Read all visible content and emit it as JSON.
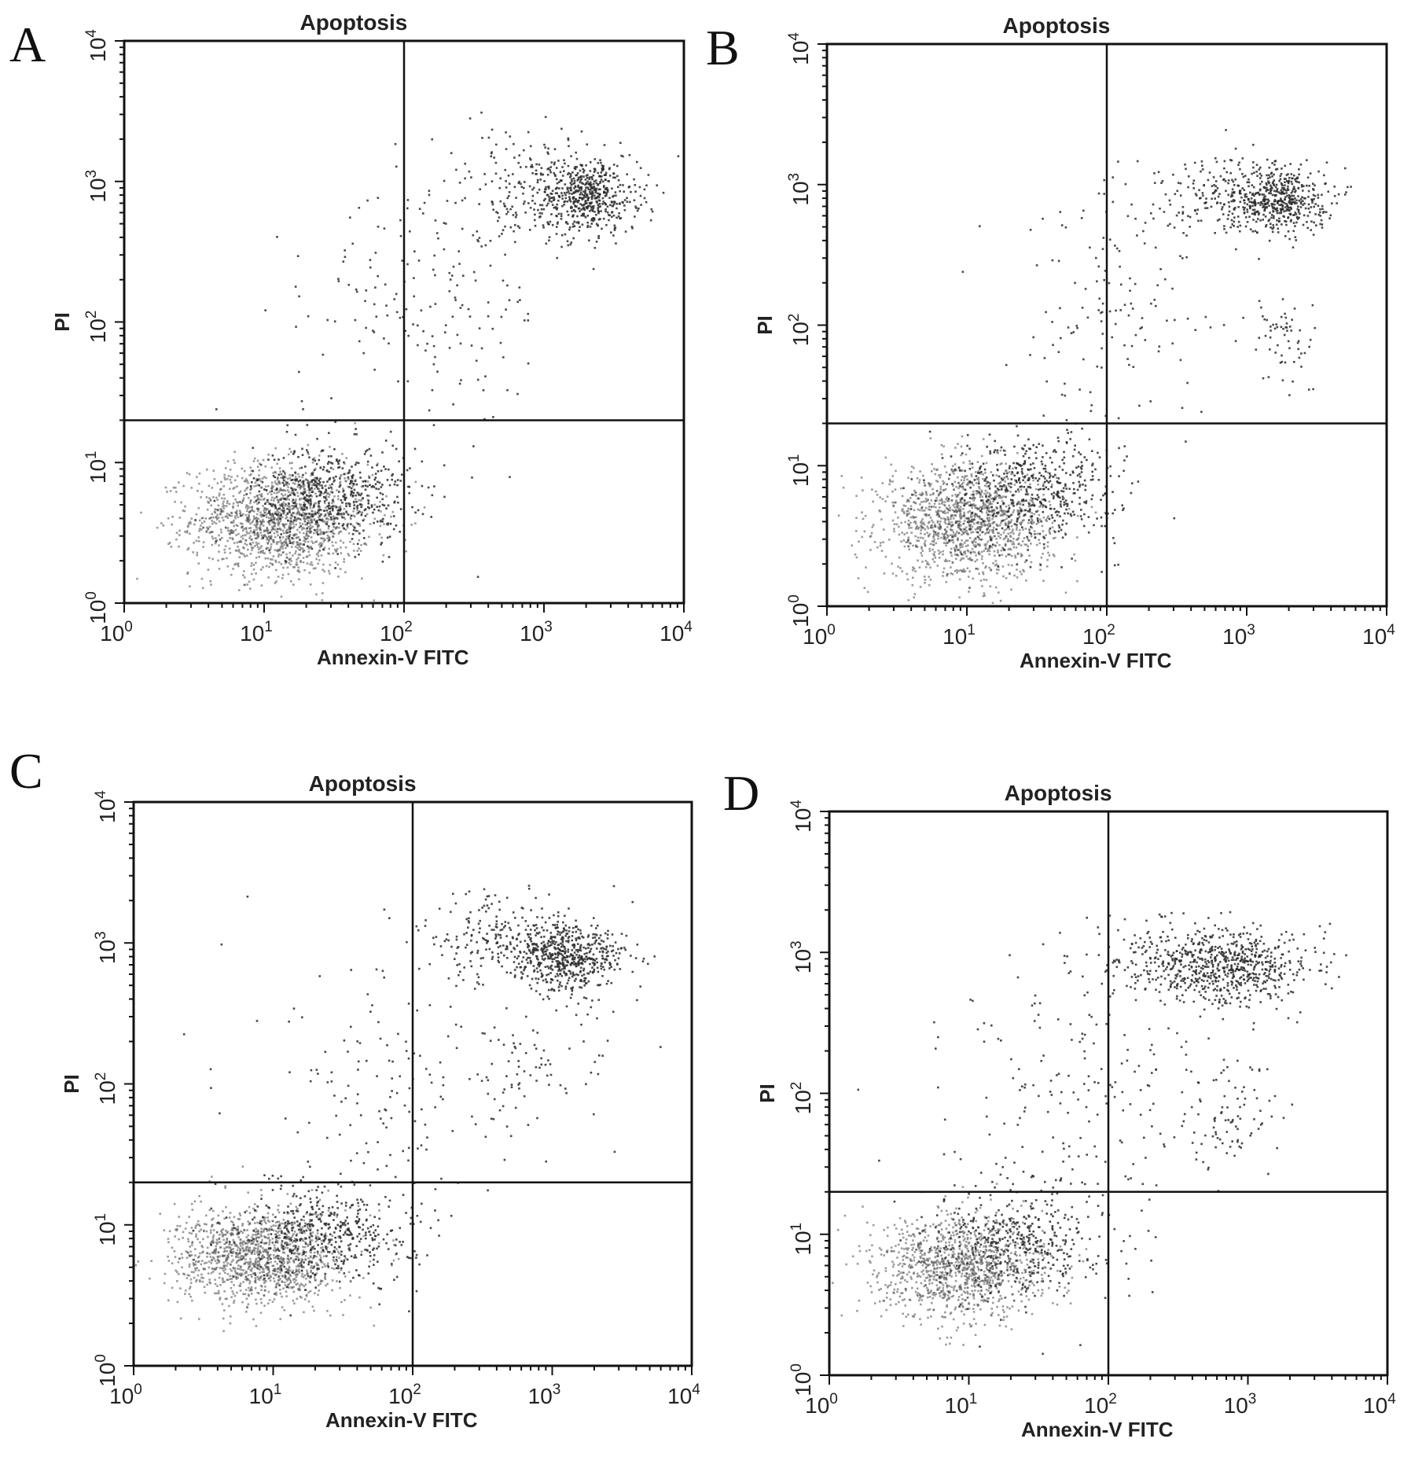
{
  "chart_data": [
    {
      "panel": "A",
      "type": "scatter",
      "title": "Apoptosis",
      "xlabel": "Annexin-V FITC",
      "ylabel": "PI",
      "xscale": "log",
      "yscale": "log",
      "xlim": [
        1,
        10000
      ],
      "ylim": [
        1,
        10000
      ],
      "x_ticks": [
        {
          "base": "10",
          "exp": "0"
        },
        {
          "base": "10",
          "exp": "1"
        },
        {
          "base": "10",
          "exp": "2"
        },
        {
          "base": "10",
          "exp": "3"
        },
        {
          "base": "10",
          "exp": "4"
        }
      ],
      "y_ticks": [
        {
          "base": "10",
          "exp": "0"
        },
        {
          "base": "10",
          "exp": "1"
        },
        {
          "base": "10",
          "exp": "2"
        },
        {
          "base": "10",
          "exp": "3"
        },
        {
          "base": "10",
          "exp": "4"
        }
      ],
      "quadrant_gate": {
        "x": 100,
        "y": 20
      },
      "clusters": [
        {
          "x": 13,
          "y": 4,
          "spread": [
            0.32,
            0.2
          ],
          "count": 1500
        },
        {
          "x": 30,
          "y": 6,
          "spread": [
            0.28,
            0.18
          ],
          "count": 500
        },
        {
          "x": 2000,
          "y": 800,
          "spread": [
            0.18,
            0.13
          ],
          "count": 520
        },
        {
          "x": 800,
          "y": 900,
          "spread": [
            0.35,
            0.2
          ],
          "count": 180
        },
        {
          "x": 250,
          "y": 200,
          "spread": [
            0.4,
            0.45
          ],
          "count": 130
        },
        {
          "x": 60,
          "y": 80,
          "spread": [
            0.45,
            0.5
          ],
          "count": 70
        }
      ]
    },
    {
      "panel": "B",
      "type": "scatter",
      "title": "Apoptosis",
      "xlabel": "Annexin-V FITC",
      "ylabel": "PI",
      "xscale": "log",
      "yscale": "log",
      "xlim": [
        1,
        10000
      ],
      "ylim": [
        1,
        10000
      ],
      "x_ticks": [
        {
          "base": "10",
          "exp": "0"
        },
        {
          "base": "10",
          "exp": "1"
        },
        {
          "base": "10",
          "exp": "2"
        },
        {
          "base": "10",
          "exp": "3"
        },
        {
          "base": "10",
          "exp": "4"
        }
      ],
      "y_ticks": [
        {
          "base": "10",
          "exp": "0"
        },
        {
          "base": "10",
          "exp": "1"
        },
        {
          "base": "10",
          "exp": "2"
        },
        {
          "base": "10",
          "exp": "3"
        },
        {
          "base": "10",
          "exp": "4"
        }
      ],
      "quadrant_gate": {
        "x": 100,
        "y": 20
      },
      "clusters": [
        {
          "x": 10,
          "y": 4,
          "spread": [
            0.3,
            0.2
          ],
          "count": 1400
        },
        {
          "x": 30,
          "y": 7,
          "spread": [
            0.3,
            0.2
          ],
          "count": 500
        },
        {
          "x": 1600,
          "y": 800,
          "spread": [
            0.18,
            0.12
          ],
          "count": 500
        },
        {
          "x": 600,
          "y": 900,
          "spread": [
            0.35,
            0.15
          ],
          "count": 150
        },
        {
          "x": 1800,
          "y": 80,
          "spread": [
            0.12,
            0.2
          ],
          "count": 60
        },
        {
          "x": 120,
          "y": 150,
          "spread": [
            0.4,
            0.45
          ],
          "count": 140
        }
      ]
    },
    {
      "panel": "C",
      "type": "scatter",
      "title": "Apoptosis",
      "xlabel": "Annexin-V FITC",
      "ylabel": "PI",
      "xscale": "log",
      "yscale": "log",
      "xlim": [
        1,
        10000
      ],
      "ylim": [
        1,
        10000
      ],
      "x_ticks": [
        {
          "base": "10",
          "exp": "0"
        },
        {
          "base": "10",
          "exp": "1"
        },
        {
          "base": "10",
          "exp": "2"
        },
        {
          "base": "10",
          "exp": "3"
        },
        {
          "base": "10",
          "exp": "4"
        }
      ],
      "y_ticks": [
        {
          "base": "10",
          "exp": "0"
        },
        {
          "base": "10",
          "exp": "1"
        },
        {
          "base": "10",
          "exp": "2"
        },
        {
          "base": "10",
          "exp": "3"
        },
        {
          "base": "10",
          "exp": "4"
        }
      ],
      "quadrant_gate": {
        "x": 100,
        "y": 20
      },
      "clusters": [
        {
          "x": 8,
          "y": 6,
          "spread": [
            0.3,
            0.17
          ],
          "count": 1300
        },
        {
          "x": 25,
          "y": 9,
          "spread": [
            0.3,
            0.18
          ],
          "count": 450
        },
        {
          "x": 1300,
          "y": 800,
          "spread": [
            0.2,
            0.12
          ],
          "count": 550
        },
        {
          "x": 400,
          "y": 1100,
          "spread": [
            0.3,
            0.15
          ],
          "count": 220
        },
        {
          "x": 700,
          "y": 120,
          "spread": [
            0.3,
            0.25
          ],
          "count": 90
        },
        {
          "x": 60,
          "y": 80,
          "spread": [
            0.45,
            0.45
          ],
          "count": 130
        }
      ]
    },
    {
      "panel": "D",
      "type": "scatter",
      "title": "Apoptosis",
      "xlabel": "Annexin-V FITC",
      "ylabel": "PI",
      "xscale": "log",
      "yscale": "log",
      "xlim": [
        1,
        10000
      ],
      "ylim": [
        1,
        10000
      ],
      "x_ticks": [
        {
          "base": "10",
          "exp": "0"
        },
        {
          "base": "10",
          "exp": "1"
        },
        {
          "base": "10",
          "exp": "2"
        },
        {
          "base": "10",
          "exp": "3"
        },
        {
          "base": "10",
          "exp": "4"
        }
      ],
      "y_ticks": [
        {
          "base": "10",
          "exp": "0"
        },
        {
          "base": "10",
          "exp": "1"
        },
        {
          "base": "10",
          "exp": "2"
        },
        {
          "base": "10",
          "exp": "3"
        },
        {
          "base": "10",
          "exp": "4"
        }
      ],
      "quadrant_gate": {
        "x": 100,
        "y": 20
      },
      "clusters": [
        {
          "x": 9,
          "y": 6,
          "spread": [
            0.3,
            0.18
          ],
          "count": 1200
        },
        {
          "x": 25,
          "y": 9,
          "spread": [
            0.3,
            0.2
          ],
          "count": 400
        },
        {
          "x": 800,
          "y": 800,
          "spread": [
            0.28,
            0.13
          ],
          "count": 550
        },
        {
          "x": 250,
          "y": 900,
          "spread": [
            0.3,
            0.15
          ],
          "count": 200
        },
        {
          "x": 800,
          "y": 70,
          "spread": [
            0.25,
            0.2
          ],
          "count": 90
        },
        {
          "x": 60,
          "y": 100,
          "spread": [
            0.45,
            0.45
          ],
          "count": 180
        }
      ]
    }
  ]
}
